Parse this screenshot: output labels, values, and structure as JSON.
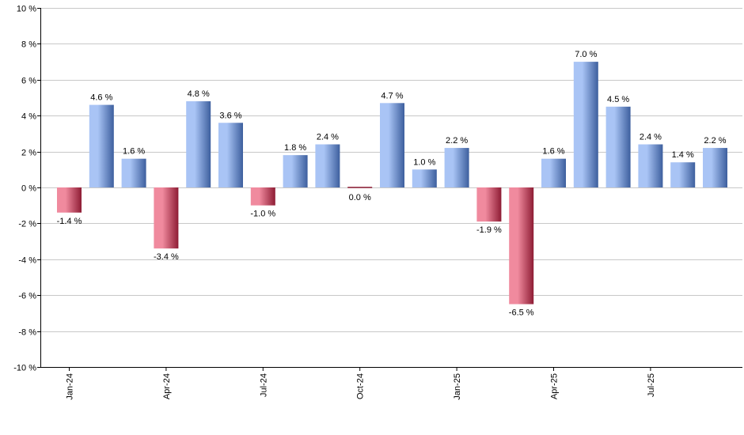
{
  "chart_data": {
    "type": "bar",
    "title": "",
    "xlabel": "",
    "ylabel": "",
    "ylim": [
      -10,
      10
    ],
    "yticks": [
      -10,
      -8,
      -6,
      -4,
      -2,
      0,
      2,
      4,
      6,
      8,
      10
    ],
    "ytick_suffix": " %",
    "grid": true,
    "legend": "none",
    "categories": [
      "Jan-24",
      "Feb-24",
      "Mar-24",
      "Apr-24",
      "May-24",
      "Jun-24",
      "Jul-24",
      "Aug-24",
      "Sep-24",
      "Oct-24",
      "Nov-24",
      "Dec-24",
      "Jan-25",
      "Feb-25",
      "Mar-25",
      "Apr-25",
      "May-25",
      "Jun-25",
      "Jul-25",
      "Aug-25",
      "Sep-25"
    ],
    "tick_labels": [
      "Jan-24",
      "",
      "",
      "Apr-24",
      "",
      "",
      "Jul-24",
      "",
      "",
      "Oct-24",
      "",
      "",
      "Jan-25",
      "",
      "",
      "Apr-25",
      "",
      "",
      "Jul-25",
      "",
      ""
    ],
    "values": [
      -1.4,
      4.6,
      1.6,
      -3.4,
      4.8,
      3.6,
      -1.0,
      1.8,
      2.4,
      0.0,
      4.7,
      1.0,
      2.2,
      -1.9,
      -6.5,
      1.6,
      7.0,
      4.5,
      2.4,
      1.4,
      2.2
    ],
    "value_labels": [
      "-1.4 %",
      "4.6 %",
      "1.6 %",
      "-3.4 %",
      "4.8 %",
      "3.6 %",
      "-1.0 %",
      "1.8 %",
      "2.4 %",
      "0.0 %",
      "4.7 %",
      "1.0 %",
      "2.2 %",
      "-1.9 %",
      "-6.5 %",
      "1.6 %",
      "7.0 %",
      "4.5 %",
      "2.4 %",
      "1.4 %",
      "2.2 %"
    ],
    "colors": {
      "positive_light": "#a9c4f5",
      "positive_dark": "#3d5f9e",
      "negative_light": "#f08a9e",
      "negative_dark": "#8e1c34",
      "grid": "#c8c8c8",
      "axis": "#000000"
    }
  }
}
